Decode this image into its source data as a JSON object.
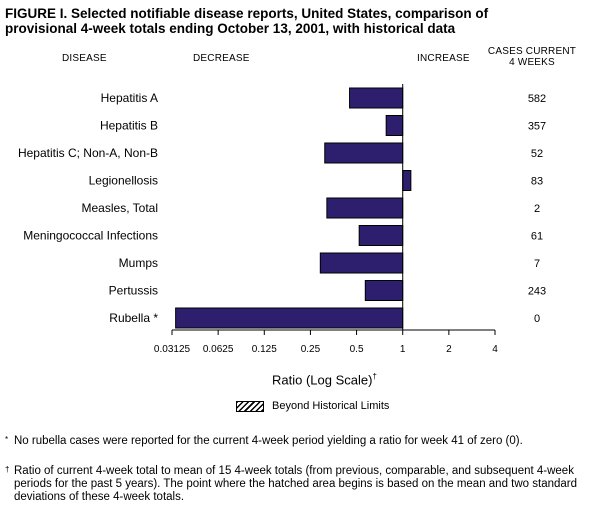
{
  "figure": {
    "title_line1": "FIGURE I. Selected notifiable disease reports, United States, comparison of",
    "title_line2": "provisional 4-week totals ending October 13, 2001, with historical data"
  },
  "headers": {
    "disease": "DISEASE",
    "decrease": "DECREASE",
    "increase": "INCREASE",
    "cases_line1": "CASES CURRENT",
    "cases_line2": "4 WEEKS"
  },
  "chart_data": {
    "type": "bar",
    "orientation": "horizontal",
    "x_scale": "log2",
    "xlim": [
      0.03125,
      4
    ],
    "baseline": 1,
    "xlabel": "Ratio (Log Scale)",
    "xlabel_mark": "†",
    "xticks": [
      "0.03125",
      "0.0625",
      "0.125",
      "0.25",
      "0.5",
      "1",
      "2",
      "4"
    ],
    "tick_values": [
      0.03125,
      0.0625,
      0.125,
      0.25,
      0.5,
      1,
      2,
      4
    ],
    "categories": [
      "Hepatitis A",
      "Hepatitis B",
      "Hepatitis C; Non-A, Non-B",
      "Legionellosis",
      "Measles, Total",
      "Meningococcal Infections",
      "Mumps",
      "Pertussis",
      "Rubella *"
    ],
    "values": [
      0.45,
      0.78,
      0.31,
      1.13,
      0.32,
      0.52,
      0.29,
      0.57,
      0.033
    ],
    "cases": [
      "582",
      "357",
      "52",
      "83",
      "2",
      "61",
      "7",
      "243",
      "0"
    ],
    "bar_color": "#2e1f6e",
    "legend": {
      "label": "Beyond Historical Limits",
      "position": "below-axis"
    }
  },
  "footnotes": [
    {
      "mark": "*",
      "text": "No rubella cases were reported for the current 4-week period yielding a ratio for week 41 of zero (0)."
    },
    {
      "mark": "†",
      "text": "Ratio of current 4-week total to mean of 15 4-week totals (from previous, comparable, and subsequent 4-week periods for the past 5 years). The point where the hatched area begins is based on the mean and two standard deviations of these 4-week totals."
    }
  ]
}
